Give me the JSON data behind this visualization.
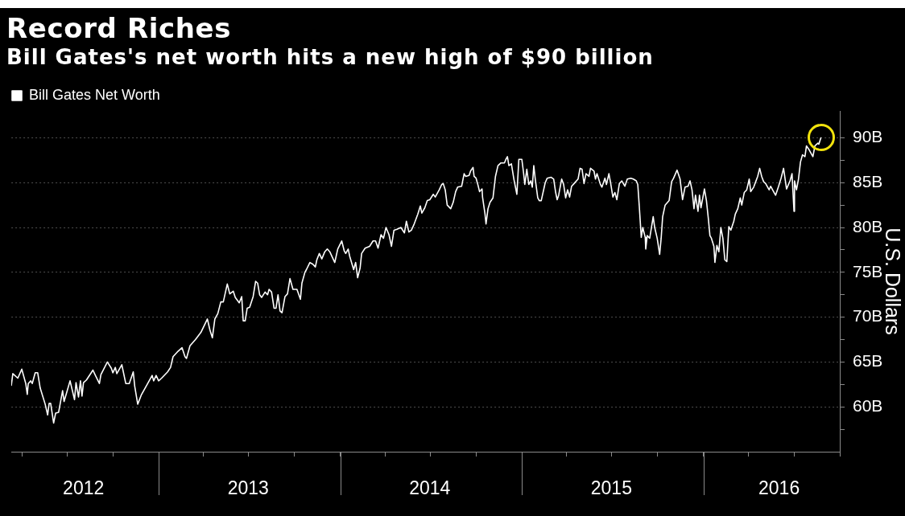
{
  "chart_data": {
    "type": "line",
    "title": "Record Riches",
    "subtitle": "Bill Gates's net worth hits a new high of $90 billion",
    "ylabel": "U.S. Dollars",
    "legend": "top left",
    "grid": "y",
    "marker": "none",
    "line_style": "solid",
    "xlim": [
      "2012-03-11",
      "2016-10-01"
    ],
    "xticks": [
      {
        "value": "2012-04-01",
        "label": null
      },
      {
        "value": "2012-07-01",
        "label": null
      },
      {
        "value": "2012-08-03",
        "label": "2012"
      },
      {
        "value": "2012-10-01",
        "label": null
      },
      {
        "value": "2013-01-01",
        "label": null
      },
      {
        "value": "2013-04-01",
        "label": null
      },
      {
        "value": "2013-06-30",
        "label": "2013"
      },
      {
        "value": "2013-07-01",
        "label": null
      },
      {
        "value": "2013-10-01",
        "label": null
      },
      {
        "value": "2014-01-01",
        "label": null
      },
      {
        "value": "2014-04-01",
        "label": null
      },
      {
        "value": "2014-06-30",
        "label": "2014"
      },
      {
        "value": "2014-07-01",
        "label": null
      },
      {
        "value": "2014-10-01",
        "label": null
      },
      {
        "value": "2015-01-01",
        "label": null
      },
      {
        "value": "2015-04-01",
        "label": null
      },
      {
        "value": "2015-06-30",
        "label": "2015"
      },
      {
        "value": "2015-07-01",
        "label": null
      },
      {
        "value": "2015-10-01",
        "label": null
      },
      {
        "value": "2016-01-01",
        "label": null
      },
      {
        "value": "2016-04-01",
        "label": null
      },
      {
        "value": "2016-06-01",
        "label": "2016"
      },
      {
        "value": "2016-07-01",
        "label": null
      },
      {
        "value": "2016-10-01",
        "label": null
      }
    ],
    "ylim": [
      55,
      93
    ],
    "yticks": [
      {
        "value": 57.5,
        "label": null
      },
      {
        "value": 60,
        "label": "60B"
      },
      {
        "value": 62.5,
        "label": null
      },
      {
        "value": 65,
        "label": "65B"
      },
      {
        "value": 67.5,
        "label": null
      },
      {
        "value": 70,
        "label": "70B"
      },
      {
        "value": 72.5,
        "label": null
      },
      {
        "value": 75,
        "label": "75B"
      },
      {
        "value": 77.5,
        "label": null
      },
      {
        "value": 80,
        "label": "80B"
      },
      {
        "value": 82.5,
        "label": null
      },
      {
        "value": 85,
        "label": "85B"
      },
      {
        "value": 87.5,
        "label": null
      },
      {
        "value": 90,
        "label": "90B"
      }
    ],
    "x": [
      "2012-03-11",
      "2012-03-14",
      "2012-03-24",
      "2012-04-01",
      "2012-04-09",
      "2012-04-12",
      "2012-04-14",
      "2012-04-19",
      "2012-04-22",
      "2012-04-28",
      "2012-05-03",
      "2012-05-08",
      "2012-05-18",
      "2012-05-23",
      "2012-05-26",
      "2012-05-29",
      "2012-06-04",
      "2012-06-08",
      "2012-06-14",
      "2012-06-22",
      "2012-06-25",
      "2012-07-07",
      "2012-07-16",
      "2012-07-19",
      "2012-07-24",
      "2012-07-28",
      "2012-07-31",
      "2012-08-03",
      "2012-08-09",
      "2012-08-22",
      "2012-08-27",
      "2012-09-04",
      "2012-09-07",
      "2012-09-20",
      "2012-09-28",
      "2012-10-01",
      "2012-10-06",
      "2012-10-09",
      "2012-10-19",
      "2012-10-27",
      "2012-11-03",
      "2012-11-11",
      "2012-11-14",
      "2012-11-20",
      "2012-11-27",
      "2012-12-08",
      "2012-12-19",
      "2012-12-22",
      "2012-12-27",
      "2013-01-01",
      "2013-01-07",
      "2013-01-19",
      "2013-01-25",
      "2013-01-30",
      "2013-02-09",
      "2013-02-17",
      "2013-02-23",
      "2013-02-26",
      "2013-03-05",
      "2013-03-16",
      "2013-03-27",
      "2013-04-09",
      "2013-04-14",
      "2013-04-19",
      "2013-04-24",
      "2013-04-30",
      "2013-05-06",
      "2013-05-11",
      "2013-05-19",
      "2013-05-24",
      "2013-05-31",
      "2013-06-04",
      "2013-06-12",
      "2013-06-17",
      "2013-06-20",
      "2013-06-24",
      "2013-06-28",
      "2013-07-03",
      "2013-07-10",
      "2013-07-15",
      "2013-07-19",
      "2013-07-23",
      "2013-07-27",
      "2013-08-03",
      "2013-08-08",
      "2013-08-11",
      "2013-08-16",
      "2013-08-21",
      "2013-08-25",
      "2013-08-29",
      "2013-09-02",
      "2013-09-06",
      "2013-09-12",
      "2013-09-17",
      "2013-09-22",
      "2013-09-28",
      "2013-10-06",
      "2013-10-13",
      "2013-10-16",
      "2013-10-22",
      "2013-10-25",
      "2013-11-01",
      "2013-11-07",
      "2013-11-12",
      "2013-11-15",
      "2013-11-20",
      "2013-11-25",
      "2013-12-01",
      "2013-12-06",
      "2013-12-11",
      "2013-12-21",
      "2013-12-27",
      "2014-01-04",
      "2014-01-09",
      "2014-01-12",
      "2014-01-17",
      "2014-01-20",
      "2014-01-28",
      "2014-02-01",
      "2014-02-05",
      "2014-02-10",
      "2014-02-13",
      "2014-02-20",
      "2014-03-01",
      "2014-03-08",
      "2014-03-13",
      "2014-03-18",
      "2014-03-24",
      "2014-03-29",
      "2014-04-03",
      "2014-04-09",
      "2014-04-14",
      "2014-04-19",
      "2014-04-25",
      "2014-05-03",
      "2014-05-10",
      "2014-05-14",
      "2014-05-19",
      "2014-05-24",
      "2014-05-29",
      "2014-06-06",
      "2014-06-11",
      "2014-06-14",
      "2014-06-20",
      "2014-06-25",
      "2014-06-30",
      "2014-07-07",
      "2014-07-11",
      "2014-07-19",
      "2014-07-24",
      "2014-07-27",
      "2014-07-31",
      "2014-08-04",
      "2014-08-11",
      "2014-08-16",
      "2014-08-21",
      "2014-08-25",
      "2014-09-02",
      "2014-09-07",
      "2014-09-10",
      "2014-09-17",
      "2014-09-20",
      "2014-09-25",
      "2014-09-27",
      "2014-10-01",
      "2014-10-05",
      "2014-10-08",
      "2014-10-13",
      "2014-10-14",
      "2014-10-19",
      "2014-10-21",
      "2014-10-25",
      "2014-10-29",
      "2014-11-04",
      "2014-11-09",
      "2014-11-14",
      "2014-11-20",
      "2014-11-27",
      "2014-11-30",
      "2014-12-03",
      "2014-12-06",
      "2014-12-11",
      "2014-12-16",
      "2014-12-22",
      "2014-12-26",
      "2015-01-01",
      "2015-01-04",
      "2015-01-07",
      "2015-01-11",
      "2015-01-15",
      "2015-01-19",
      "2015-01-22",
      "2015-01-25",
      "2015-01-28",
      "2015-02-02",
      "2015-02-05",
      "2015-02-09",
      "2015-02-17",
      "2015-02-21",
      "2015-03-01",
      "2015-03-06",
      "2015-03-10",
      "2015-03-13",
      "2015-03-16",
      "2015-03-22",
      "2015-03-26",
      "2015-03-30",
      "2015-04-03",
      "2015-04-07",
      "2015-04-11",
      "2015-04-16",
      "2015-04-24",
      "2015-04-28",
      "2015-05-02",
      "2015-05-06",
      "2015-05-10",
      "2015-05-16",
      "2015-05-19",
      "2015-05-26",
      "2015-05-29",
      "2015-06-01",
      "2015-06-08",
      "2015-06-11",
      "2015-06-17",
      "2015-06-20",
      "2015-06-25",
      "2015-06-28",
      "2015-07-03",
      "2015-07-07",
      "2015-07-11",
      "2015-07-16",
      "2015-07-21",
      "2015-07-27",
      "2015-08-01",
      "2015-08-08",
      "2015-08-13",
      "2015-08-19",
      "2015-08-22",
      "2015-08-25",
      "2015-08-29",
      "2015-09-01",
      "2015-09-06",
      "2015-09-07",
      "2015-09-10",
      "2015-09-15",
      "2015-09-22",
      "2015-09-25",
      "2015-09-30",
      "2015-10-05",
      "2015-10-08",
      "2015-10-11",
      "2015-10-16",
      "2015-10-24",
      "2015-10-29",
      "2015-11-02",
      "2015-11-09",
      "2015-11-15",
      "2015-11-20",
      "2015-11-25",
      "2015-12-01",
      "2015-12-05",
      "2015-12-09",
      "2015-12-13",
      "2015-12-16",
      "2015-12-21",
      "2015-12-24",
      "2015-12-27",
      "2016-01-03",
      "2016-01-07",
      "2016-01-11",
      "2016-01-14",
      "2016-01-17",
      "2016-01-22",
      "2016-01-24",
      "2016-01-28",
      "2016-02-01",
      "2016-02-05",
      "2016-02-09",
      "2016-02-13",
      "2016-02-17",
      "2016-02-21",
      "2016-02-25",
      "2016-03-02",
      "2016-03-05",
      "2016-03-10",
      "2016-03-15",
      "2016-03-18",
      "2016-03-23",
      "2016-03-28",
      "2016-04-02",
      "2016-04-05",
      "2016-04-11",
      "2016-04-15",
      "2016-04-19",
      "2016-04-23",
      "2016-04-27",
      "2016-05-01",
      "2016-05-05",
      "2016-05-12",
      "2016-05-15",
      "2016-05-22",
      "2016-05-25",
      "2016-05-31",
      "2016-06-05",
      "2016-06-10",
      "2016-06-16",
      "2016-06-23",
      "2016-06-27",
      "2016-07-01",
      "2016-07-02",
      "2016-07-06",
      "2016-07-10",
      "2016-07-14",
      "2016-07-18",
      "2016-07-23",
      "2016-07-26",
      "2016-07-31",
      "2016-08-03",
      "2016-08-08",
      "2016-08-12",
      "2016-08-18",
      "2016-08-20",
      "2016-08-24"
    ],
    "series": [
      {
        "name": "Bill Gates Net Worth",
        "color": "#ffffff",
        "values": [
          62.4,
          63.7,
          63.2,
          64.2,
          62.6,
          61.4,
          62.6,
          62.9,
          62.6,
          63.8,
          63.8,
          62.1,
          60.3,
          59.1,
          60.4,
          60.4,
          58.2,
          59.3,
          59.4,
          61.8,
          60.6,
          62.9,
          60.8,
          62.7,
          61.1,
          62.9,
          61.2,
          62.7,
          63.0,
          64.1,
          63.5,
          62.6,
          63.6,
          65.0,
          64.3,
          63.8,
          64.4,
          63.7,
          64.7,
          62.6,
          62.6,
          63.9,
          62.3,
          60.3,
          61.3,
          62.4,
          63.5,
          62.9,
          63.5,
          62.9,
          63.2,
          63.9,
          64.4,
          65.6,
          66.2,
          66.6,
          65.6,
          65.4,
          66.8,
          67.5,
          68.3,
          69.8,
          68.6,
          67.7,
          69.8,
          70.4,
          71.7,
          71.7,
          73.7,
          72.6,
          72.9,
          72.2,
          71.6,
          72.3,
          69.6,
          69.6,
          71.0,
          71.1,
          72.3,
          74.0,
          73.8,
          72.5,
          72.2,
          72.8,
          72.5,
          73.1,
          72.8,
          71.0,
          71.0,
          72.5,
          70.7,
          70.5,
          72.3,
          72.6,
          74.3,
          73.1,
          73.1,
          72.0,
          73.8,
          75.0,
          75.3,
          76.1,
          75.9,
          75.6,
          76.4,
          77.1,
          76.5,
          77.3,
          77.6,
          77.3,
          76.1,
          77.6,
          78.5,
          77.4,
          77.1,
          77.6,
          76.8,
          75.3,
          76.1,
          74.4,
          75.5,
          77.1,
          77.7,
          77.9,
          78.5,
          78.5,
          77.7,
          79.2,
          78.8,
          80.0,
          79.2,
          77.9,
          79.7,
          79.8,
          80.0,
          79.4,
          80.7,
          79.5,
          79.7,
          80.3,
          81.5,
          82.4,
          81.6,
          82.2,
          83.0,
          83.1,
          83.7,
          83.4,
          84.2,
          84.8,
          84.9,
          84.2,
          82.5,
          82.1,
          82.8,
          84.0,
          84.5,
          84.6,
          86.0,
          85.7,
          85.8,
          86.3,
          86.7,
          85.7,
          85.5,
          84.7,
          84.0,
          84.3,
          83.4,
          81.5,
          80.4,
          82.1,
          82.8,
          83.3,
          85.7,
          86.9,
          87.2,
          87.2,
          87.6,
          87.9,
          86.9,
          87.1,
          85.4,
          83.7,
          87.6,
          87.6,
          86.3,
          84.8,
          86.5,
          84.8,
          85.2,
          84.5,
          86.9,
          85.4,
          83.3,
          83.0,
          83.0,
          85.0,
          85.5,
          85.6,
          85.4,
          83.9,
          83.1,
          83.6,
          85.4,
          84.8,
          83.3,
          84.2,
          83.4,
          84.6,
          84.9,
          85.4,
          86.6,
          86.5,
          84.9,
          86.0,
          85.7,
          86.6,
          86.3,
          85.4,
          86.0,
          84.8,
          84.5,
          85.5,
          84.8,
          86.0,
          85.1,
          83.4,
          83.9,
          83.1,
          84.9,
          85.2,
          84.6,
          85.4,
          85.5,
          85.4,
          85.2,
          84.8,
          82.4,
          78.9,
          80.0,
          78.9,
          77.6,
          79.1,
          78.8,
          81.2,
          80.0,
          78.8,
          77.0,
          78.8,
          81.2,
          82.5,
          83.0,
          85.1,
          85.5,
          86.4,
          85.4,
          83.1,
          84.5,
          84.6,
          85.2,
          84.2,
          82.1,
          83.6,
          81.8,
          83.6,
          82.2,
          84.3,
          83.0,
          80.9,
          79.1,
          78.8,
          77.9,
          76.1,
          78.0,
          77.3,
          80.0,
          78.8,
          76.4,
          76.2,
          80.1,
          79.7,
          80.7,
          81.5,
          82.1,
          83.3,
          82.5,
          83.9,
          84.2,
          85.4,
          84.0,
          84.5,
          85.1,
          85.7,
          86.6,
          85.7,
          85.1,
          84.9,
          84.2,
          84.6,
          83.9,
          83.6,
          84.6,
          85.5,
          86.6,
          84.3,
          85.2,
          86.0,
          81.8,
          85.2,
          84.2,
          85.4,
          87.3,
          88.1,
          87.9,
          89.1,
          88.7,
          88.4,
          87.9,
          89.1,
          89.4,
          89.3,
          90.0
        ]
      }
    ]
  }
}
